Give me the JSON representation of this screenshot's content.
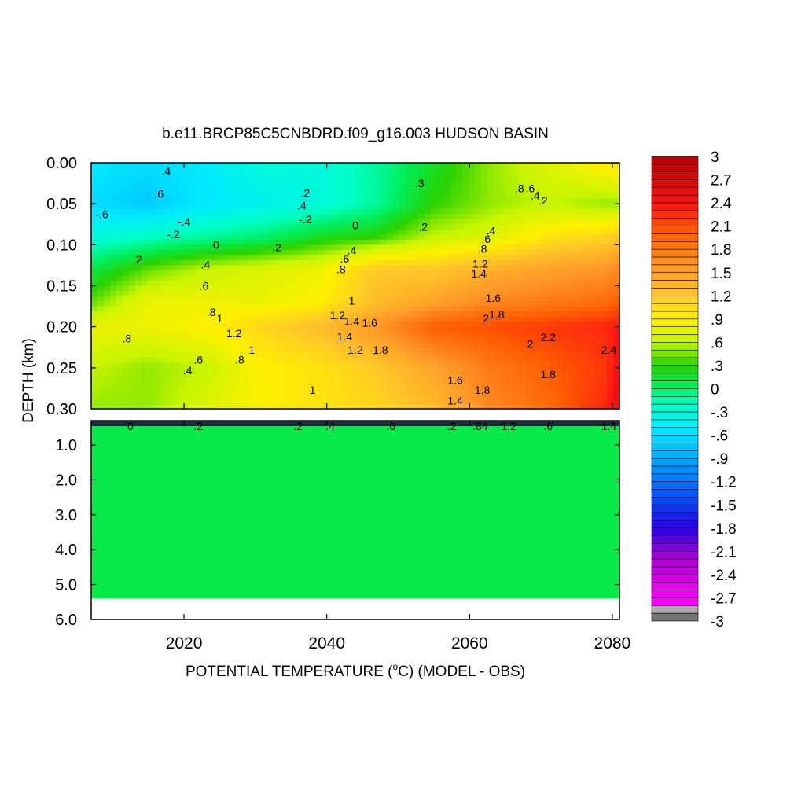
{
  "chart_data": {
    "type": "heatmap",
    "title": "b.e11.BRCP85C5CNBDRD.f09_g16.003 HUDSON BASIN",
    "xlabel_main": "POTENTIAL TEMPERATURE (",
    "xlabel_super": "o",
    "xlabel_tail": "C) (MODEL - OBS)",
    "ylabel": "DEPTH (km)",
    "x_range": [
      2007,
      2081
    ],
    "x_ticks": [
      "2020",
      "2040",
      "2060",
      "2080"
    ],
    "upper_panel": {
      "ylim": [
        0.0,
        0.3
      ],
      "y_ticks": [
        "0.00",
        "0.05",
        "0.10",
        "0.15",
        "0.20",
        "0.25",
        "0.30"
      ]
    },
    "lower_panel": {
      "ylim": [
        0.3,
        6.0
      ],
      "y_ticks": [
        "1.0",
        "2.0",
        "3.0",
        "4.0",
        "5.0",
        "6.0"
      ],
      "fill_bottom_depth": 5.4,
      "fill_value": 0.1
    },
    "field": {
      "years": [
        2007,
        2015,
        2023,
        2031,
        2039,
        2047,
        2055,
        2063,
        2071,
        2079,
        2081
      ],
      "depths": [
        0.005,
        0.05,
        0.09,
        0.13,
        0.17,
        0.2,
        0.25,
        0.3
      ],
      "values": [
        [
          -0.5,
          -0.6,
          -0.5,
          -0.3,
          -0.3,
          -0.1,
          0.2,
          0.5,
          0.7,
          0.9,
          1.0
        ],
        [
          -0.6,
          -0.7,
          -0.5,
          -0.4,
          -0.3,
          -0.1,
          0.3,
          0.5,
          0.6,
          0.5,
          0.5
        ],
        [
          -0.3,
          -0.2,
          -0.1,
          0.0,
          0.2,
          0.3,
          0.6,
          0.7,
          1.0,
          1.1,
          1.2
        ],
        [
          0.1,
          0.4,
          0.6,
          0.7,
          0.8,
          1.2,
          1.2,
          1.4,
          1.5,
          1.6,
          1.7
        ],
        [
          0.4,
          0.8,
          0.8,
          0.8,
          0.9,
          1.3,
          1.5,
          1.7,
          1.8,
          1.9,
          2.0
        ],
        [
          0.8,
          0.8,
          0.9,
          1.1,
          1.3,
          1.6,
          2.0,
          2.1,
          2.2,
          2.3,
          2.4
        ],
        [
          0.6,
          0.5,
          0.6,
          0.9,
          1.0,
          1.2,
          1.5,
          1.8,
          2.0,
          2.2,
          2.5
        ],
        [
          0.5,
          0.5,
          0.7,
          0.9,
          1.0,
          1.1,
          1.3,
          1.7,
          1.9,
          2.3,
          2.6
        ]
      ]
    },
    "contour_labels_upper": [
      {
        "t": ".4",
        "x": 2017.5,
        "d": 0.01
      },
      {
        "t": ".6",
        "x": 2016.5,
        "d": 0.038
      },
      {
        "t": "-.6",
        "x": 2008.5,
        "d": 0.063
      },
      {
        "t": "-.4",
        "x": 2020.0,
        "d": 0.072
      },
      {
        "t": "-.2",
        "x": 2018.5,
        "d": 0.087
      },
      {
        "t": ".2",
        "x": 2013.5,
        "d": 0.118
      },
      {
        "t": "0",
        "x": 2024.5,
        "d": 0.1
      },
      {
        "t": ".4",
        "x": 2023.0,
        "d": 0.124
      },
      {
        "t": ".6",
        "x": 2022.8,
        "d": 0.15
      },
      {
        "t": ".2",
        "x": 2033.0,
        "d": 0.103
      },
      {
        "t": ".2",
        "x": 2037.0,
        "d": 0.037
      },
      {
        "t": ".4",
        "x": 2036.5,
        "d": 0.052
      },
      {
        "t": "-.2",
        "x": 2037.0,
        "d": 0.069
      },
      {
        "t": "0",
        "x": 2044.0,
        "d": 0.076
      },
      {
        "t": ".2",
        "x": 2053.5,
        "d": 0.078
      },
      {
        "t": ".4",
        "x": 2043.5,
        "d": 0.107
      },
      {
        "t": ".6",
        "x": 2042.5,
        "d": 0.117
      },
      {
        "t": ".8",
        "x": 2042.0,
        "d": 0.13
      },
      {
        "t": "1",
        "x": 2043.5,
        "d": 0.168
      },
      {
        "t": ".8",
        "x": 2023.8,
        "d": 0.182
      },
      {
        "t": "1",
        "x": 2025.0,
        "d": 0.19
      },
      {
        "t": "1.2",
        "x": 2027.0,
        "d": 0.208
      },
      {
        "t": "1",
        "x": 2029.5,
        "d": 0.228
      },
      {
        "t": ".8",
        "x": 2027.8,
        "d": 0.24
      },
      {
        "t": ".8",
        "x": 2012.0,
        "d": 0.214
      },
      {
        "t": ".6",
        "x": 2022.0,
        "d": 0.24
      },
      {
        "t": ".4",
        "x": 2020.5,
        "d": 0.253
      },
      {
        "t": "1.2",
        "x": 2041.5,
        "d": 0.186
      },
      {
        "t": "1.4",
        "x": 2043.5,
        "d": 0.193
      },
      {
        "t": "1.6",
        "x": 2046.0,
        "d": 0.195
      },
      {
        "t": "1.4",
        "x": 2042.5,
        "d": 0.212
      },
      {
        "t": "1.2",
        "x": 2044.0,
        "d": 0.228
      },
      {
        "t": "1.8",
        "x": 2047.5,
        "d": 0.228
      },
      {
        "t": "1",
        "x": 2038.0,
        "d": 0.277
      },
      {
        "t": ".3",
        "x": 2053.0,
        "d": 0.025
      },
      {
        "t": ".8",
        "x": 2067.0,
        "d": 0.031
      },
      {
        "t": ".6",
        "x": 2068.5,
        "d": 0.031
      },
      {
        "t": ".4",
        "x": 2069.2,
        "d": 0.04
      },
      {
        "t": ".2",
        "x": 2070.3,
        "d": 0.046
      },
      {
        "t": ".4",
        "x": 2063.0,
        "d": 0.083
      },
      {
        "t": ".6",
        "x": 2062.3,
        "d": 0.093
      },
      {
        "t": ".8",
        "x": 2061.8,
        "d": 0.105
      },
      {
        "t": "1.2",
        "x": 2061.5,
        "d": 0.123
      },
      {
        "t": "1.4",
        "x": 2061.3,
        "d": 0.135
      },
      {
        "t": "1.6",
        "x": 2063.3,
        "d": 0.165
      },
      {
        "t": "1.8",
        "x": 2063.8,
        "d": 0.185
      },
      {
        "t": "2",
        "x": 2062.3,
        "d": 0.19
      },
      {
        "t": "2",
        "x": 2068.5,
        "d": 0.221
      },
      {
        "t": "2.2",
        "x": 2071.0,
        "d": 0.213
      },
      {
        "t": "1.8",
        "x": 2071.0,
        "d": 0.258
      },
      {
        "t": "1.6",
        "x": 2058.0,
        "d": 0.265
      },
      {
        "t": "1.4",
        "x": 2058.0,
        "d": 0.29
      },
      {
        "t": "1.8",
        "x": 2061.8,
        "d": 0.277
      },
      {
        "t": "2.4",
        "x": 2079.5,
        "d": 0.228
      }
    ],
    "contour_labels_lower": [
      {
        "t": "0",
        "x": 2012.5
      },
      {
        "t": ".2",
        "x": 2022.0
      },
      {
        "t": ".2",
        "x": 2036.0
      },
      {
        "t": ".4",
        "x": 2040.5
      },
      {
        "t": ".6",
        "x": 2049.0
      },
      {
        "t": ".2",
        "x": 2057.5
      },
      {
        "t": ".84",
        "x": 2061.5
      },
      {
        "t": "1.2",
        "x": 2065.5
      },
      {
        "t": ".6",
        "x": 2071.0
      },
      {
        "t": "1.4",
        "x": 2079.5
      }
    ],
    "colorbar": {
      "vmin": -3.0,
      "vmax": 3.0,
      "tick_labels": [
        "3",
        "2.7",
        "2.4",
        "2.1",
        "1.8",
        "1.5",
        "1.2",
        ".9",
        ".6",
        ".3",
        "0",
        "-.3",
        "-.6",
        "-.9",
        "-1.2",
        "-1.5",
        "-1.8",
        "-2.1",
        "-2.4",
        "-2.7",
        "-3"
      ]
    }
  }
}
